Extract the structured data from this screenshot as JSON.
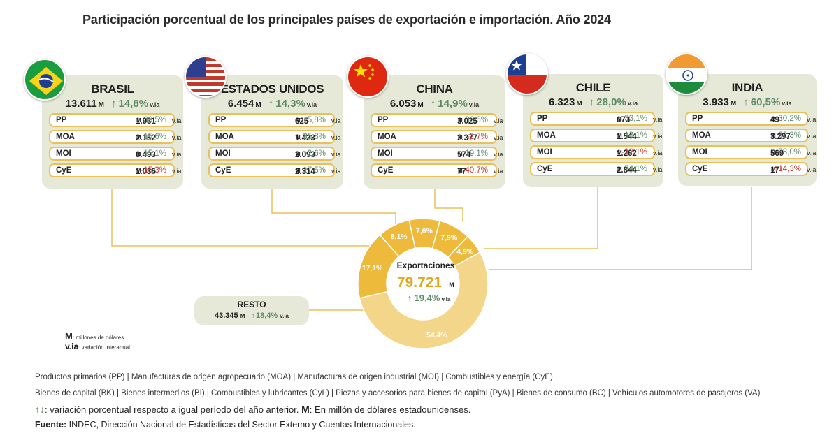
{
  "title": "Participación porcentual de los principales países de exportación e importación. Año 2024",
  "colors": {
    "card_bg": "#e7e9d8",
    "row_border": "#e9c05a",
    "up": "#5d8a66",
    "down": "#c0392b",
    "donut_dark": "#edba3c",
    "donut_light": "#f4d68a"
  },
  "countries": [
    {
      "id": "brasil",
      "name": "BRASIL",
      "flag": "brazil-flag",
      "total": "13.611",
      "unit": "M",
      "var_arrow": "↑",
      "var": "14,8%",
      "via": "v.ia",
      "rows": [
        {
          "code": "PP",
          "value": "1.931",
          "unit": "M",
          "arrow": "↑",
          "dir": "up",
          "pct": "38,5%",
          "via": "v.ia"
        },
        {
          "code": "MOA",
          "value": "2.152",
          "unit": "M",
          "arrow": "↑",
          "dir": "up",
          "pct": "15,6%",
          "via": "v.ia"
        },
        {
          "code": "MOI",
          "value": "8.493",
          "unit": "M",
          "arrow": "↑",
          "dir": "up",
          "pct": "15,1%",
          "via": "v.ia"
        },
        {
          "code": "CyE",
          "value": "1.036",
          "unit": "M",
          "arrow": "↓",
          "dir": "down",
          "pct": "-15,3%",
          "via": "v.ia"
        }
      ]
    },
    {
      "id": "estados-unidos",
      "name": "ESTADOS UNIDOS",
      "flag": "usa-flag",
      "total": "6.454",
      "unit": "M",
      "var_arrow": "↑",
      "var": "14,3%",
      "via": "v.ia",
      "rows": [
        {
          "code": "PP",
          "value": "625",
          "unit": "M",
          "arrow": "↑",
          "dir": "up",
          "pct": "5,8%",
          "via": "v.ia"
        },
        {
          "code": "MOA",
          "value": "1.423",
          "unit": "M",
          "arrow": "↑",
          "dir": "up",
          "pct": "35,8%",
          "via": "v.ia"
        },
        {
          "code": "MOI",
          "value": "2.093",
          "unit": "M",
          "arrow": "↑",
          "dir": "up",
          "pct": "2,6%",
          "via": "v.ia"
        },
        {
          "code": "CyE",
          "value": "2.314",
          "unit": "M",
          "arrow": "↑",
          "dir": "up",
          "pct": "17,5%",
          "via": "v.ia"
        }
      ]
    },
    {
      "id": "china",
      "name": "CHINA",
      "flag": "china-flag",
      "total": "6.053",
      "unit": "M",
      "var_arrow": "↑",
      "var": "14,9%",
      "via": "v.ia",
      "rows": [
        {
          "code": "PP",
          "value": "3.025",
          "unit": "M",
          "arrow": "↑",
          "dir": "up",
          "pct": "36,6%",
          "via": "v.ia"
        },
        {
          "code": "MOA",
          "value": "2.377",
          "unit": "M",
          "arrow": "↓",
          "dir": "down",
          "pct": "-2,7%",
          "via": "v.ia"
        },
        {
          "code": "MOI",
          "value": "574",
          "unit": "M",
          "arrow": "↑",
          "dir": "up",
          "pct": "19,1%",
          "via": "v.ia"
        },
        {
          "code": "CyE",
          "value": "77",
          "unit": "M",
          "arrow": "↓",
          "dir": "down",
          "pct": "-40,7%",
          "via": "v.ia"
        }
      ]
    },
    {
      "id": "chile",
      "name": "CHILE",
      "flag": "chile-flag",
      "total": "6.323",
      "unit": "M",
      "var_arrow": "↑",
      "var": "28,0%",
      "via": "v.ia",
      "rows": [
        {
          "code": "PP",
          "value": "673",
          "unit": "M",
          "arrow": "↑",
          "dir": "up",
          "pct": "33,1%",
          "via": "v.ia"
        },
        {
          "code": "MOA",
          "value": "1.544",
          "unit": "M",
          "arrow": "↑",
          "dir": "up",
          "pct": "13,1%",
          "via": "v.ia"
        },
        {
          "code": "MOI",
          "value": "1.262",
          "unit": "M",
          "arrow": "↓",
          "dir": "down",
          "pct": "-12,1%",
          "via": "v.ia"
        },
        {
          "code": "CyE",
          "value": "2.844",
          "unit": "M",
          "arrow": "↑",
          "dir": "up",
          "pct": "74,1%",
          "via": "v.ia"
        }
      ]
    },
    {
      "id": "india",
      "name": "INDIA",
      "flag": "india-flag",
      "total": "3.933",
      "unit": "M",
      "var_arrow": "↑",
      "var": "60,5%",
      "via": "v.ia",
      "rows": [
        {
          "code": "PP",
          "value": "49",
          "unit": "M",
          "arrow": "↑",
          "dir": "up",
          "pct": "30,2%",
          "via": "v.ia"
        },
        {
          "code": "MOA",
          "value": "3.297",
          "unit": "M",
          "arrow": "↑",
          "dir": "up",
          "pct": "62,3%",
          "via": "v.ia"
        },
        {
          "code": "MOI",
          "value": "569",
          "unit": "M",
          "arrow": "↑",
          "dir": "up",
          "pct": "58,0%",
          "via": "v.ia"
        },
        {
          "code": "CyE",
          "value": "17",
          "unit": "M",
          "arrow": "↓",
          "dir": "down",
          "pct": "-14,3%",
          "via": "v.ia"
        }
      ]
    }
  ],
  "resto": {
    "name": "RESTO",
    "value": "43.345",
    "unit": "M",
    "var_arrow": "↑",
    "var": "18,4%",
    "via": "v.ia"
  },
  "center": {
    "label": "Exportaciones",
    "total": "79.721",
    "unit": "M",
    "var_arrow": "↑",
    "var": "19,4%",
    "via": "v.ia"
  },
  "chart_data": {
    "type": "pie",
    "title": "Exportaciones",
    "categories": [
      "BRASIL",
      "ESTADOS UNIDOS",
      "CHINA",
      "CHILE",
      "INDIA",
      "RESTO"
    ],
    "values": [
      17.1,
      8.1,
      7.6,
      7.9,
      4.9,
      54.4
    ],
    "labels": [
      "17,1%",
      "8,1%",
      "7,6%",
      "7,9%",
      "4,9%",
      "54,4%"
    ]
  },
  "legend": {
    "m_symbol": "M",
    "m_text": ": millones de dólares",
    "via_symbol": "v.ia",
    "via_text": ": variación interanual"
  },
  "footer": {
    "line1": "Productos primarios (PP)  |  Manufacturas de origen agropecuario (MOA)  |  Manufacturas de origen industrial (MOI) | Combustibles y energía (CyE)  |",
    "line2": "Bienes de capital (BK)  |  Bienes intermedios (BI)  |  Combustibles y lubricantes (CyL)  |  Piezas y accesorios para bienes de capital (PyA)  |  Bienes de consumo (BC)  |  Vehículos automotores de pasajeros (VA)",
    "arrows": "↑↓",
    "line3_a": ": variación porcentual respecto a igual período del año anterior. ",
    "line3_m": "M",
    "line3_b": ": En millón de dólares estadounidenses.",
    "source_label": "Fuente:",
    "source_text": " INDEC, Dirección Nacional de Estadísticas del Sector Externo y Cuentas Internacionales."
  }
}
